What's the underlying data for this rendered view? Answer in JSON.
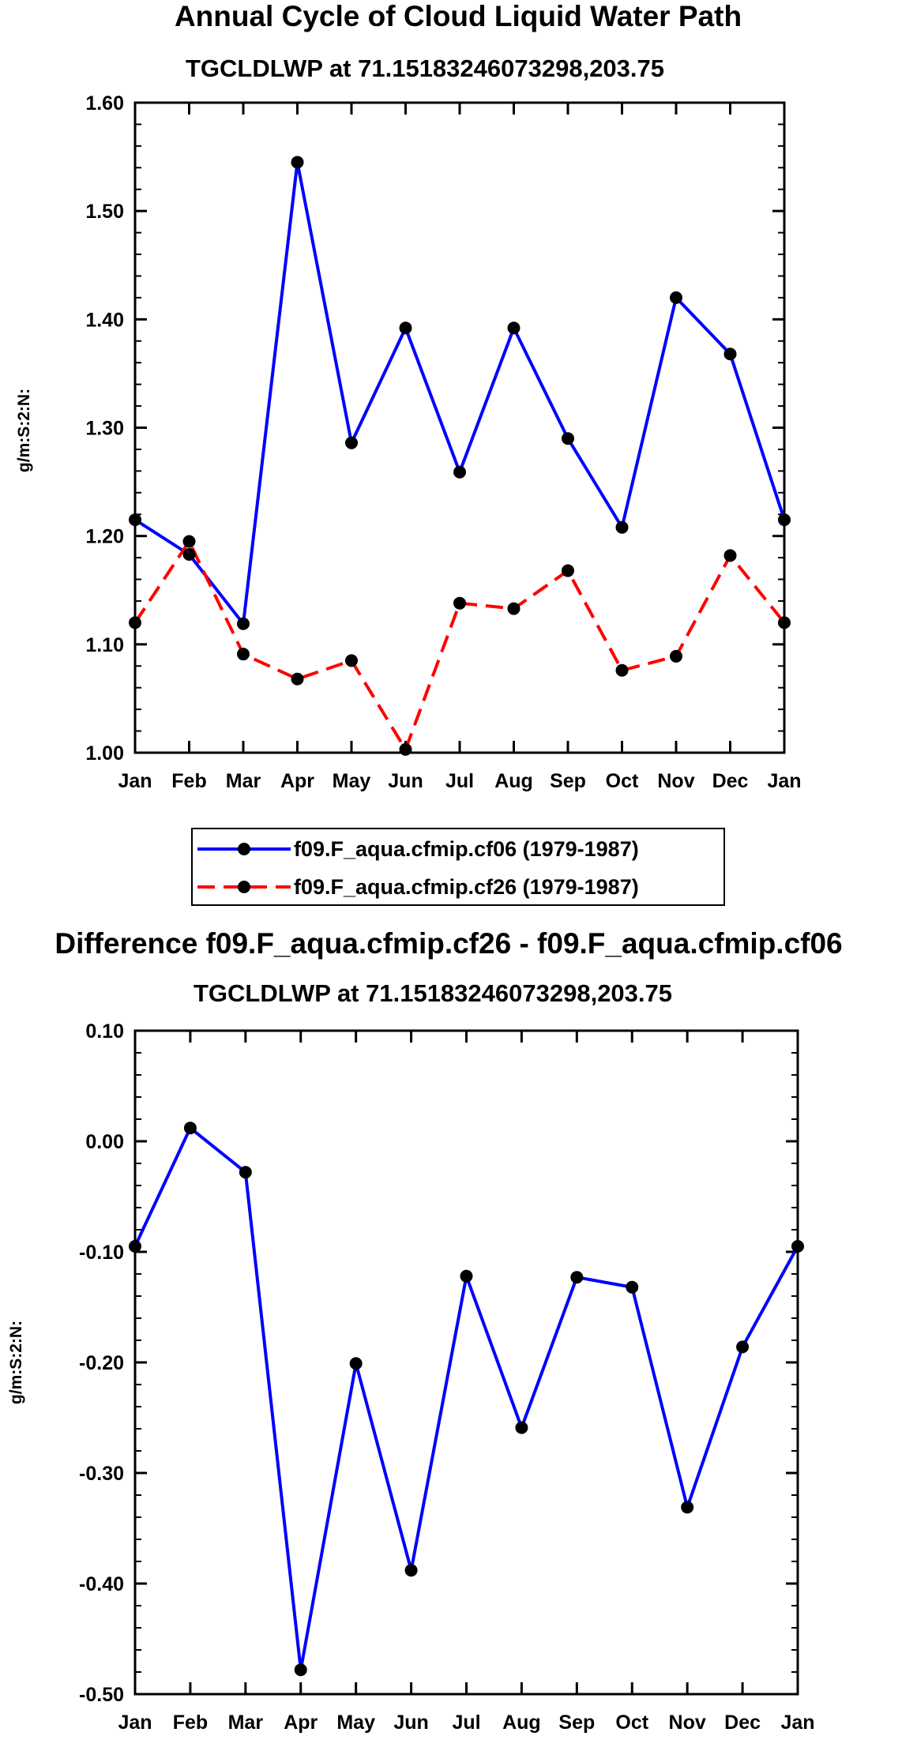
{
  "chart_data": [
    {
      "type": "line",
      "title": "Annual Cycle of Cloud Liquid Water Path",
      "subtitle": "TGCLDLWP at 71.15183246073298,203.75",
      "ylabel": "g/m:S:2:N:",
      "xlabel": "",
      "categories": [
        "Jan",
        "Feb",
        "Mar",
        "Apr",
        "May",
        "Jun",
        "Jul",
        "Aug",
        "Sep",
        "Oct",
        "Nov",
        "Dec",
        "Jan"
      ],
      "ylim": [
        1.0,
        1.6
      ],
      "yticks": [
        "1.00",
        "1.10",
        "1.20",
        "1.30",
        "1.40",
        "1.50",
        "1.60"
      ],
      "series": [
        {
          "name": "f09.F_aqua.cfmip.cf06 (1979-1987)",
          "color": "#0000ff",
          "dash": "solid",
          "values": [
            1.215,
            1.183,
            1.119,
            1.545,
            1.286,
            1.392,
            1.259,
            1.392,
            1.29,
            1.208,
            1.42,
            1.368,
            1.215
          ]
        },
        {
          "name": "f09.F_aqua.cfmip.cf26 (1979-1987)",
          "color": "#ff0000",
          "dash": "dashed",
          "values": [
            1.12,
            1.195,
            1.091,
            1.068,
            1.085,
            1.003,
            1.138,
            1.133,
            1.168,
            1.076,
            1.089,
            1.182,
            1.12
          ]
        }
      ]
    },
    {
      "type": "line",
      "title": "Difference f09.F_aqua.cfmip.cf26 - f09.F_aqua.cfmip.cf06",
      "subtitle": "TGCLDLWP at 71.15183246073298,203.75",
      "ylabel": "g/m:S:2:N:",
      "xlabel": "",
      "categories": [
        "Jan",
        "Feb",
        "Mar",
        "Apr",
        "May",
        "Jun",
        "Jul",
        "Aug",
        "Sep",
        "Oct",
        "Nov",
        "Dec",
        "Jan"
      ],
      "ylim": [
        -0.5,
        0.1
      ],
      "yticks": [
        "-0.50",
        "-0.40",
        "-0.30",
        "-0.20",
        "-0.10",
        "0.00",
        "0.10"
      ],
      "series": [
        {
          "name": "difference",
          "color": "#0000ff",
          "dash": "solid",
          "values": [
            -0.095,
            0.012,
            -0.028,
            -0.478,
            -0.201,
            -0.388,
            -0.122,
            -0.259,
            -0.123,
            -0.132,
            -0.331,
            -0.186,
            -0.095
          ]
        }
      ]
    }
  ]
}
